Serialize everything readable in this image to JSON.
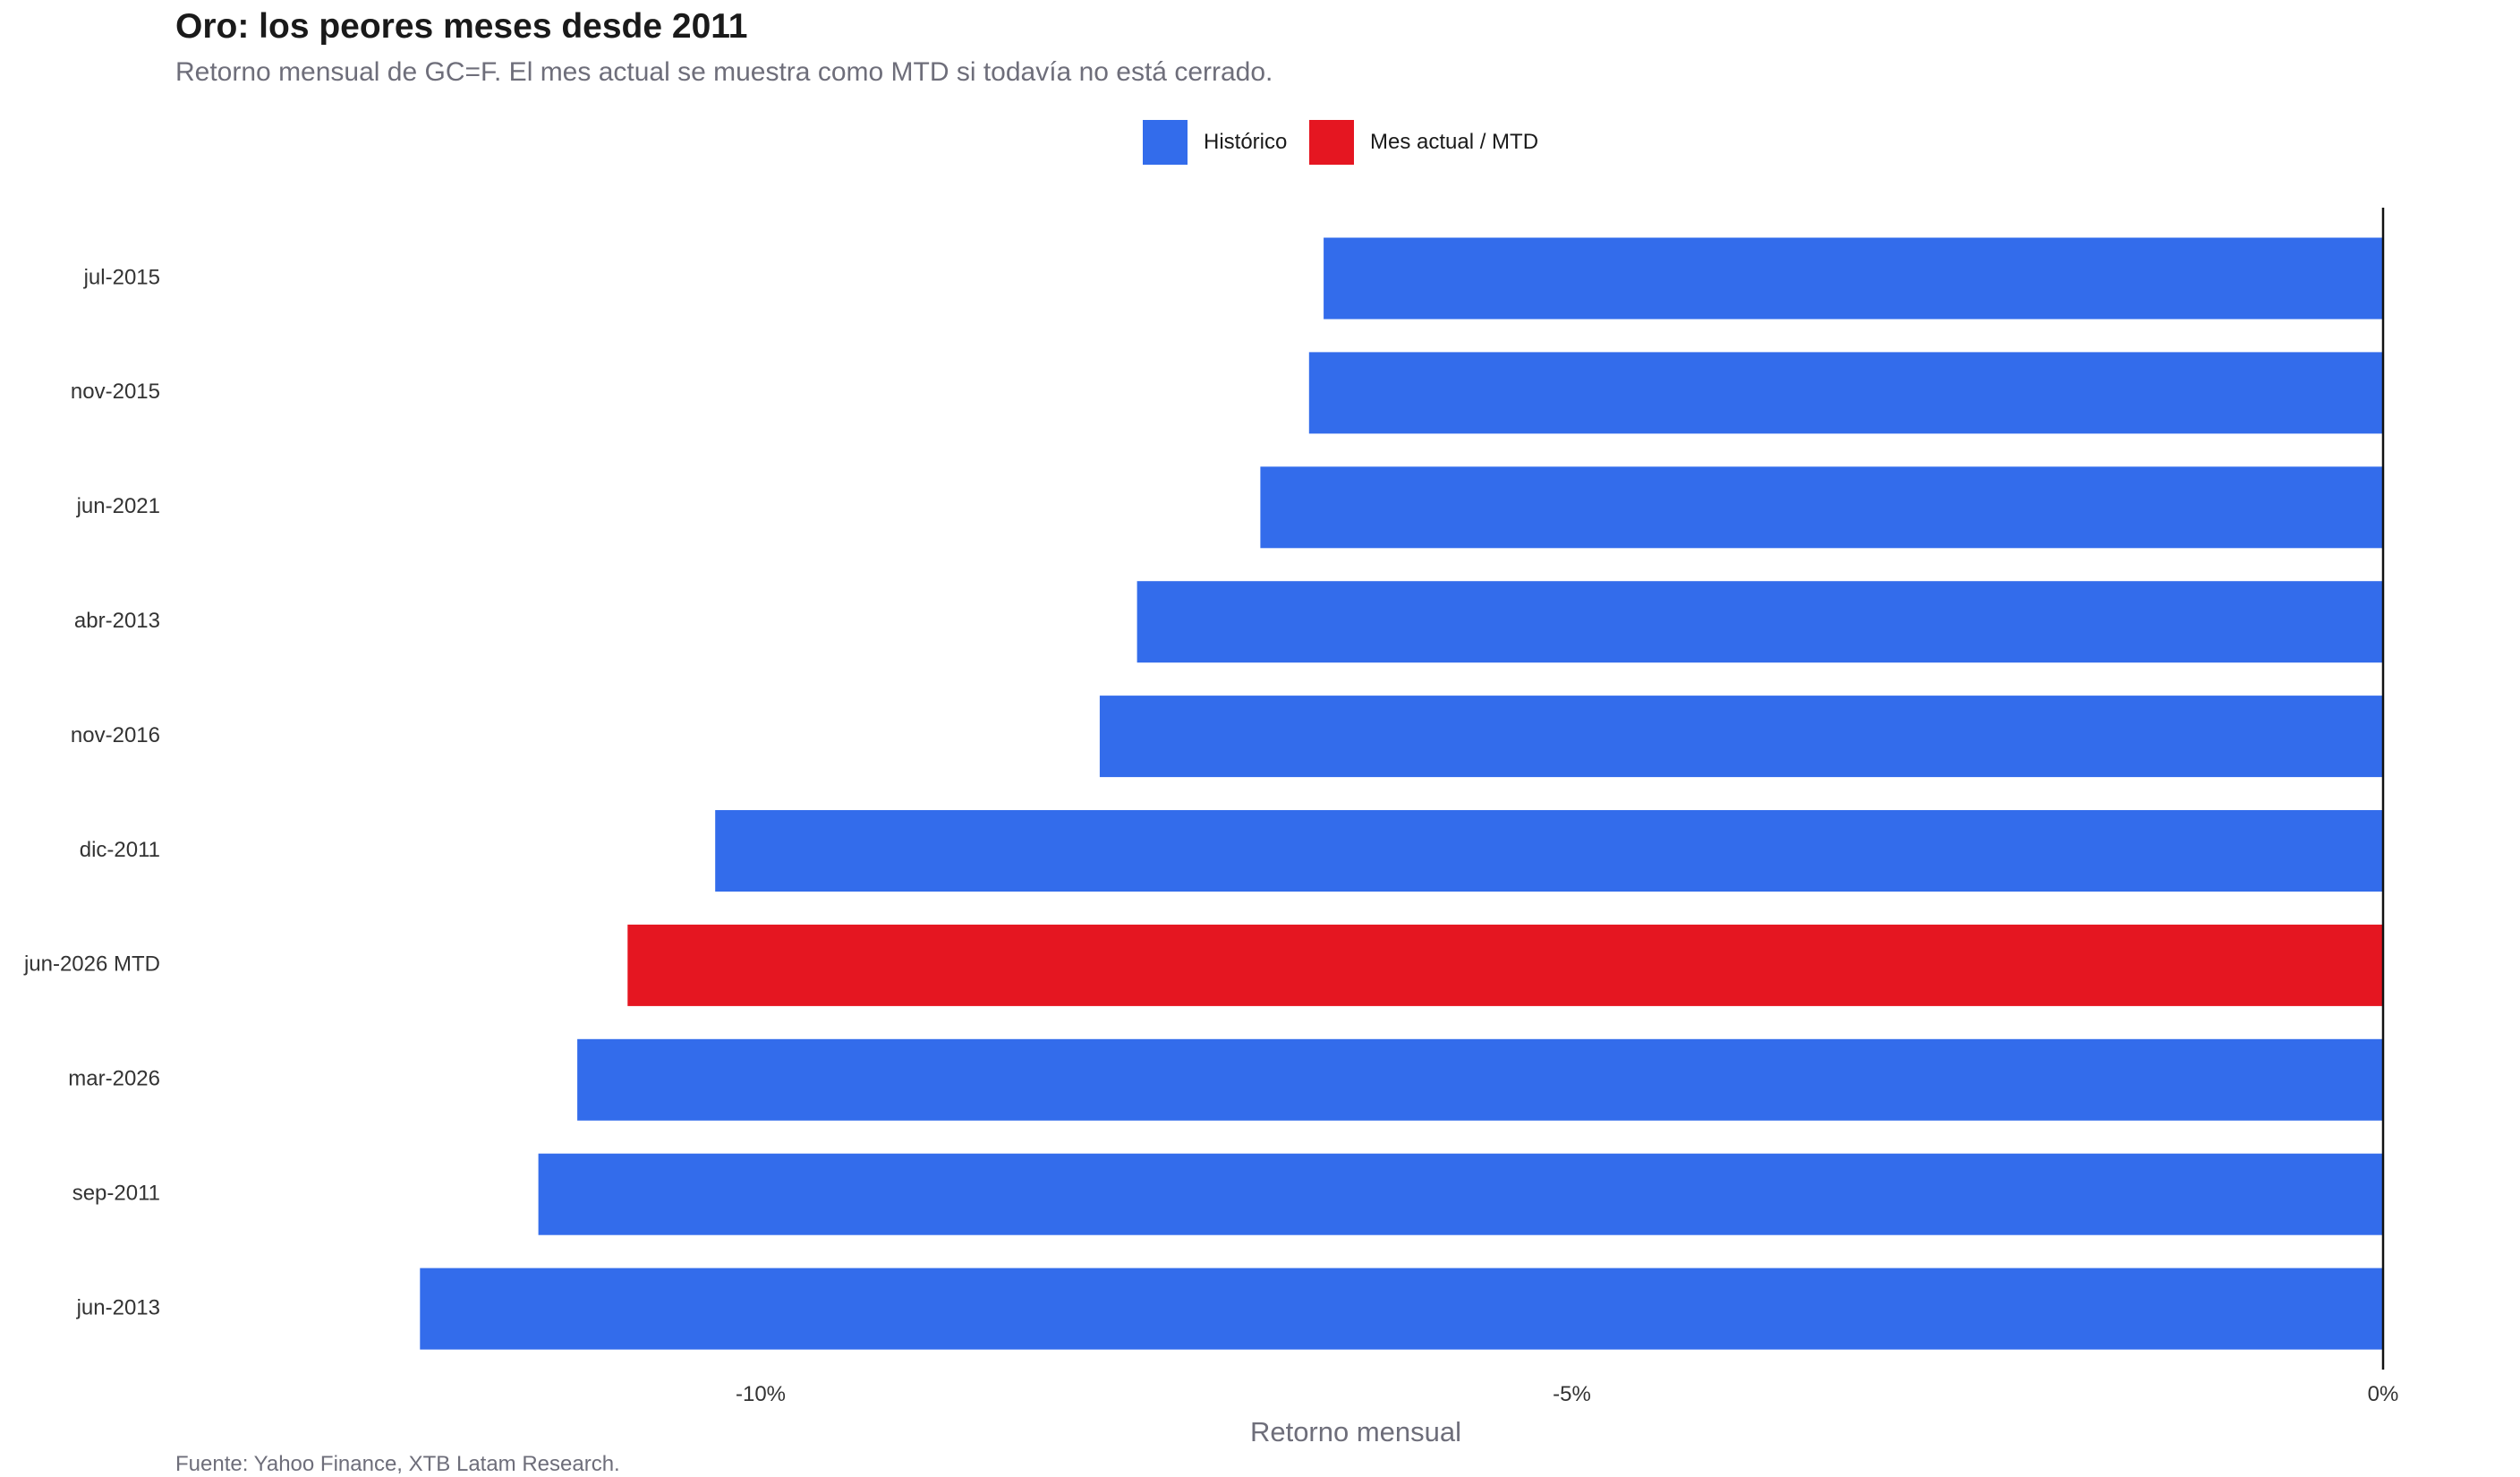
{
  "chart_data": {
    "type": "bar",
    "orientation": "horizontal",
    "title": "Oro: los peores meses desde 2011",
    "subtitle": "Retorno mensual de GC=F. El mes actual se muestra como MTD si todavía no está cerrado.",
    "xlabel": "Retorno mensual",
    "ylabel": "",
    "source": "Fuente: Yahoo Finance, XTB Latam Research.",
    "xlim": [
      -12.5,
      0.4
    ],
    "xticks": [
      {
        "value": -10,
        "label": "-10%"
      },
      {
        "value": -5,
        "label": "-5%"
      },
      {
        "value": 0,
        "label": "0%"
      }
    ],
    "legend_position": "top-center",
    "legend": [
      {
        "key": "historico",
        "label": "Histórico",
        "color": "#336CEB"
      },
      {
        "key": "mtd",
        "label": "Mes actual / MTD",
        "color": "#E51621"
      }
    ],
    "categories": [
      "jul-2015",
      "nov-2015",
      "jun-2021",
      "abr-2013",
      "nov-2016",
      "dic-2011",
      "jun-2026 MTD",
      "mar-2026",
      "sep-2011",
      "jun-2013"
    ],
    "values": [
      -6.53,
      -6.62,
      -6.92,
      -7.68,
      -7.91,
      -10.28,
      -10.82,
      -11.13,
      -11.37,
      -12.1
    ],
    "groups": [
      "historico",
      "historico",
      "historico",
      "historico",
      "historico",
      "historico",
      "mtd",
      "historico",
      "historico",
      "historico"
    ],
    "grid": false
  }
}
